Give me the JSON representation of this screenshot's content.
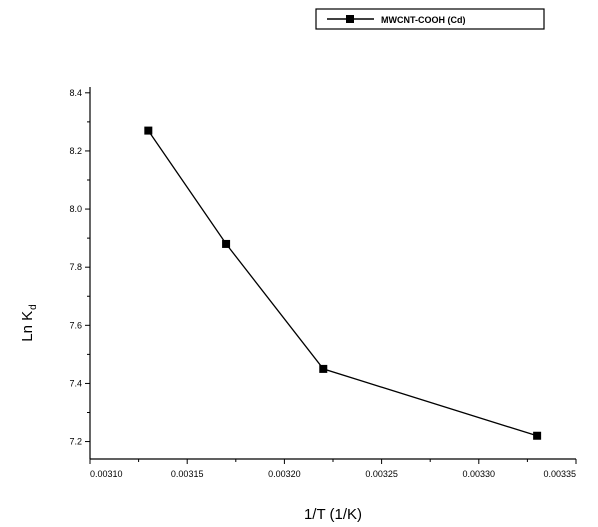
{
  "chart_data": {
    "type": "line",
    "xlabel": "1/T (1/K)",
    "ylabel_main": "Ln K",
    "ylabel_sub": "d",
    "x_tick_labels": [
      "0.00310",
      "0.00315",
      "0.00320",
      "0.00325",
      "0.00330",
      "0.00335"
    ],
    "y_tick_labels": [
      "7.2",
      "7.4",
      "7.6",
      "7.8",
      "8.0",
      "8.2",
      "8.4"
    ],
    "xlim": [
      0.0031,
      0.00335
    ],
    "ylim": [
      7.14,
      8.42
    ],
    "x_ticks": [
      0.0031,
      0.00315,
      0.0032,
      0.00325,
      0.0033,
      0.00335
    ],
    "y_ticks": [
      7.2,
      7.4,
      7.6,
      7.8,
      8.0,
      8.2,
      8.4
    ],
    "series": [
      {
        "name": "MWCNT-COOH (Cd)",
        "color": "#000000",
        "marker": "square",
        "x": [
          0.00313,
          0.00317,
          0.00322,
          0.00333
        ],
        "y": [
          8.27,
          7.88,
          7.45,
          7.22
        ]
      }
    ],
    "legend_position": "top-right",
    "grid": false
  }
}
